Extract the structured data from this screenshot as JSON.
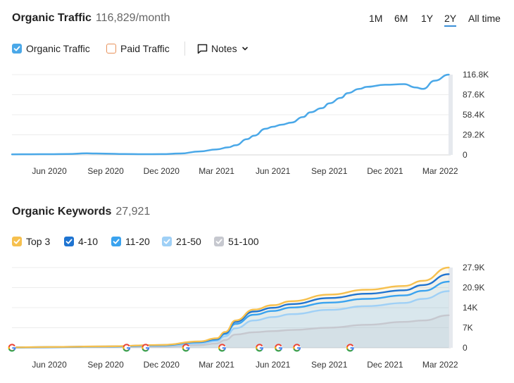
{
  "traffic": {
    "title": "Organic Traffic",
    "value": "116,829/month",
    "ranges": [
      {
        "label": "1M",
        "active": false
      },
      {
        "label": "6M",
        "active": false
      },
      {
        "label": "1Y",
        "active": false
      },
      {
        "label": "2Y",
        "active": true
      },
      {
        "label": "All time",
        "active": false
      }
    ],
    "legend": {
      "organic": {
        "label": "Organic Traffic",
        "checked": true,
        "color": "#4aa8e8"
      },
      "paid": {
        "label": "Paid Traffic",
        "checked": false,
        "color": "#e8925a"
      }
    },
    "notes_label": "Notes"
  },
  "keywords": {
    "title": "Organic Keywords",
    "value": "27,921",
    "legend": [
      {
        "label": "Top 3",
        "color": "#f6c04e",
        "checked": true
      },
      {
        "label": "4-10",
        "color": "#1f74d1",
        "checked": true
      },
      {
        "label": "11-20",
        "color": "#3aa3ef",
        "checked": true
      },
      {
        "label": "21-50",
        "color": "#9fd0f6",
        "checked": true
      },
      {
        "label": "51-100",
        "color": "#c6c8cf",
        "checked": true
      }
    ]
  },
  "chart_data": [
    {
      "type": "line",
      "title": "Organic Traffic",
      "series": [
        {
          "name": "Organic Traffic",
          "color": "#4aa8e8",
          "x": [
            "2020-04-01",
            "2020-05-01",
            "2020-06-01",
            "2020-07-01",
            "2020-08-01",
            "2020-09-01",
            "2020-10-01",
            "2020-11-01",
            "2020-12-01",
            "2021-01-01",
            "2021-02-01",
            "2021-03-01",
            "2021-03-20",
            "2021-04-01",
            "2021-04-20",
            "2021-05-01",
            "2021-05-20",
            "2021-06-01",
            "2021-06-15",
            "2021-07-01",
            "2021-07-20",
            "2021-08-01",
            "2021-08-20",
            "2021-09-01",
            "2021-09-20",
            "2021-10-01",
            "2021-10-20",
            "2021-11-01",
            "2021-12-01",
            "2022-01-01",
            "2022-01-20",
            "2022-02-01",
            "2022-02-20",
            "2022-03-15"
          ],
          "values": [
            800,
            900,
            1000,
            1300,
            2300,
            1800,
            1200,
            1000,
            1100,
            2000,
            5000,
            8000,
            11000,
            14000,
            23000,
            28000,
            38000,
            41000,
            44000,
            47000,
            55000,
            62000,
            68000,
            75000,
            83000,
            90000,
            96000,
            99000,
            102000,
            103000,
            98000,
            96000,
            108000,
            116800
          ]
        }
      ],
      "x_ticks": [
        "Jun 2020",
        "Sep 2020",
        "Dec 2020",
        "Mar 2021",
        "Jun 2021",
        "Sep 2021",
        "Dec 2021",
        "Mar 2022"
      ],
      "y_ticks": [
        "0",
        "29.2K",
        "58.4K",
        "87.6K",
        "116.8K"
      ],
      "ylim": [
        0,
        116800
      ],
      "grid": true
    },
    {
      "type": "area",
      "title": "Organic Keywords",
      "x": [
        "2020-04-01",
        "2020-06-01",
        "2020-09-01",
        "2020-12-01",
        "2021-02-01",
        "2021-03-01",
        "2021-03-15",
        "2021-04-01",
        "2021-05-01",
        "2021-06-01",
        "2021-07-01",
        "2021-09-01",
        "2021-11-01",
        "2022-01-01",
        "2022-02-01",
        "2022-03-15"
      ],
      "series": [
        {
          "name": "Top 3",
          "color": "#f6c04e",
          "values": [
            150,
            300,
            500,
            1000,
            2200,
            3300,
            5500,
            9500,
            13300,
            14800,
            16200,
            18500,
            20200,
            21500,
            23300,
            27900
          ]
        },
        {
          "name": "4-10",
          "color": "#1f74d1",
          "values": [
            140,
            280,
            470,
            950,
            2100,
            3100,
            5200,
            9000,
            12600,
            13900,
            15200,
            17300,
            18800,
            20000,
            21800,
            25600
          ]
        },
        {
          "name": "11-20",
          "color": "#3aa3ef",
          "values": [
            120,
            250,
            420,
            850,
            1900,
            2800,
            4800,
            8300,
            11500,
            12800,
            14000,
            15700,
            17000,
            18200,
            19800,
            23000
          ]
        },
        {
          "name": "21-50",
          "color": "#9fd0f6",
          "values": [
            100,
            200,
            340,
            700,
            1500,
            2300,
            4000,
            6800,
            9500,
            10700,
            11700,
            13200,
            14500,
            15600,
            17000,
            19700
          ]
        },
        {
          "name": "51-100",
          "color": "#c6c8cf",
          "values": [
            60,
            120,
            200,
            400,
            900,
            1500,
            2700,
            4600,
            5400,
            5800,
            6200,
            7000,
            8000,
            9000,
            9500,
            11300
          ]
        }
      ],
      "x_ticks": [
        "Jun 2020",
        "Sep 2020",
        "Dec 2020",
        "Mar 2021",
        "Jun 2021",
        "Sep 2021",
        "Dec 2021",
        "Mar 2022"
      ],
      "y_ticks": [
        "0",
        "7K",
        "14K",
        "20.9K",
        "27.9K"
      ],
      "ylim": [
        0,
        27900
      ],
      "stacked": false,
      "grid": true,
      "markers": [
        "2020-04-01",
        "2020-10-05",
        "2020-11-05",
        "2021-01-10",
        "2021-03-10",
        "2021-05-10",
        "2021-06-10",
        "2021-07-10",
        "2021-10-05"
      ]
    }
  ]
}
